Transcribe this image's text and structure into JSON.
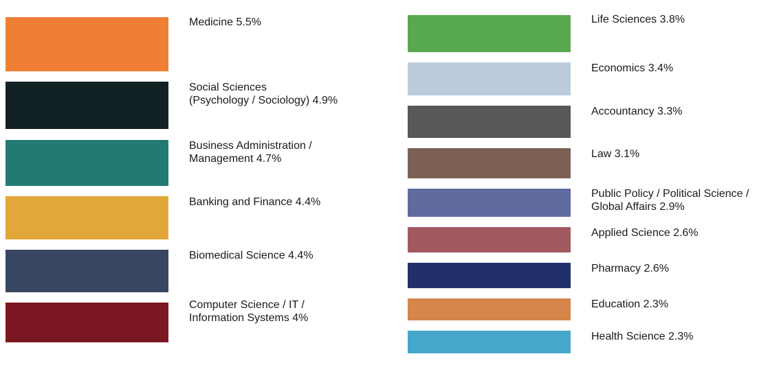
{
  "chart_data": {
    "type": "treemap-legend",
    "items": [
      {
        "label": "Medicine 5.5%",
        "value": 5.5,
        "color": "#ef7f35"
      },
      {
        "label": "Social Sciences\n(Psychology / Sociology) 4.9%",
        "value": 4.9,
        "color": "#122124"
      },
      {
        "label": "Business Administration /\nManagement 4.7%",
        "value": 4.7,
        "color": "#237a74"
      },
      {
        "label": "Banking and Finance 4.4%",
        "value": 4.4,
        "color": "#e1a73b"
      },
      {
        "label": "Biomedical Science 4.4%",
        "value": 4.4,
        "color": "#384661"
      },
      {
        "label": "Computer Science / IT /\nInformation Systems 4%",
        "value": 4.0,
        "color": "#7b1720"
      },
      {
        "label": "Life Sciences 3.8%",
        "value": 3.8,
        "color": "#58a94d"
      },
      {
        "label": "Economics 3.4%",
        "value": 3.4,
        "color": "#bbcbdc"
      },
      {
        "label": "Accountancy 3.3%",
        "value": 3.3,
        "color": "#585858"
      },
      {
        "label": "Law 3.1%",
        "value": 3.1,
        "color": "#7c6054"
      },
      {
        "label": "Public Policy / Political Science /\nGlobal Affairs 2.9%",
        "value": 2.9,
        "color": "#5f6a9f"
      },
      {
        "label": "Applied Science 2.6%",
        "value": 2.6,
        "color": "#a35960"
      },
      {
        "label": "Pharmacy 2.6%",
        "value": 2.6,
        "color": "#22306a"
      },
      {
        "label": "Education 2.3%",
        "value": 2.3,
        "color": "#d6854b"
      },
      {
        "label": "Health Science 2.3%",
        "value": 2.3,
        "color": "#45a7c9"
      }
    ]
  }
}
